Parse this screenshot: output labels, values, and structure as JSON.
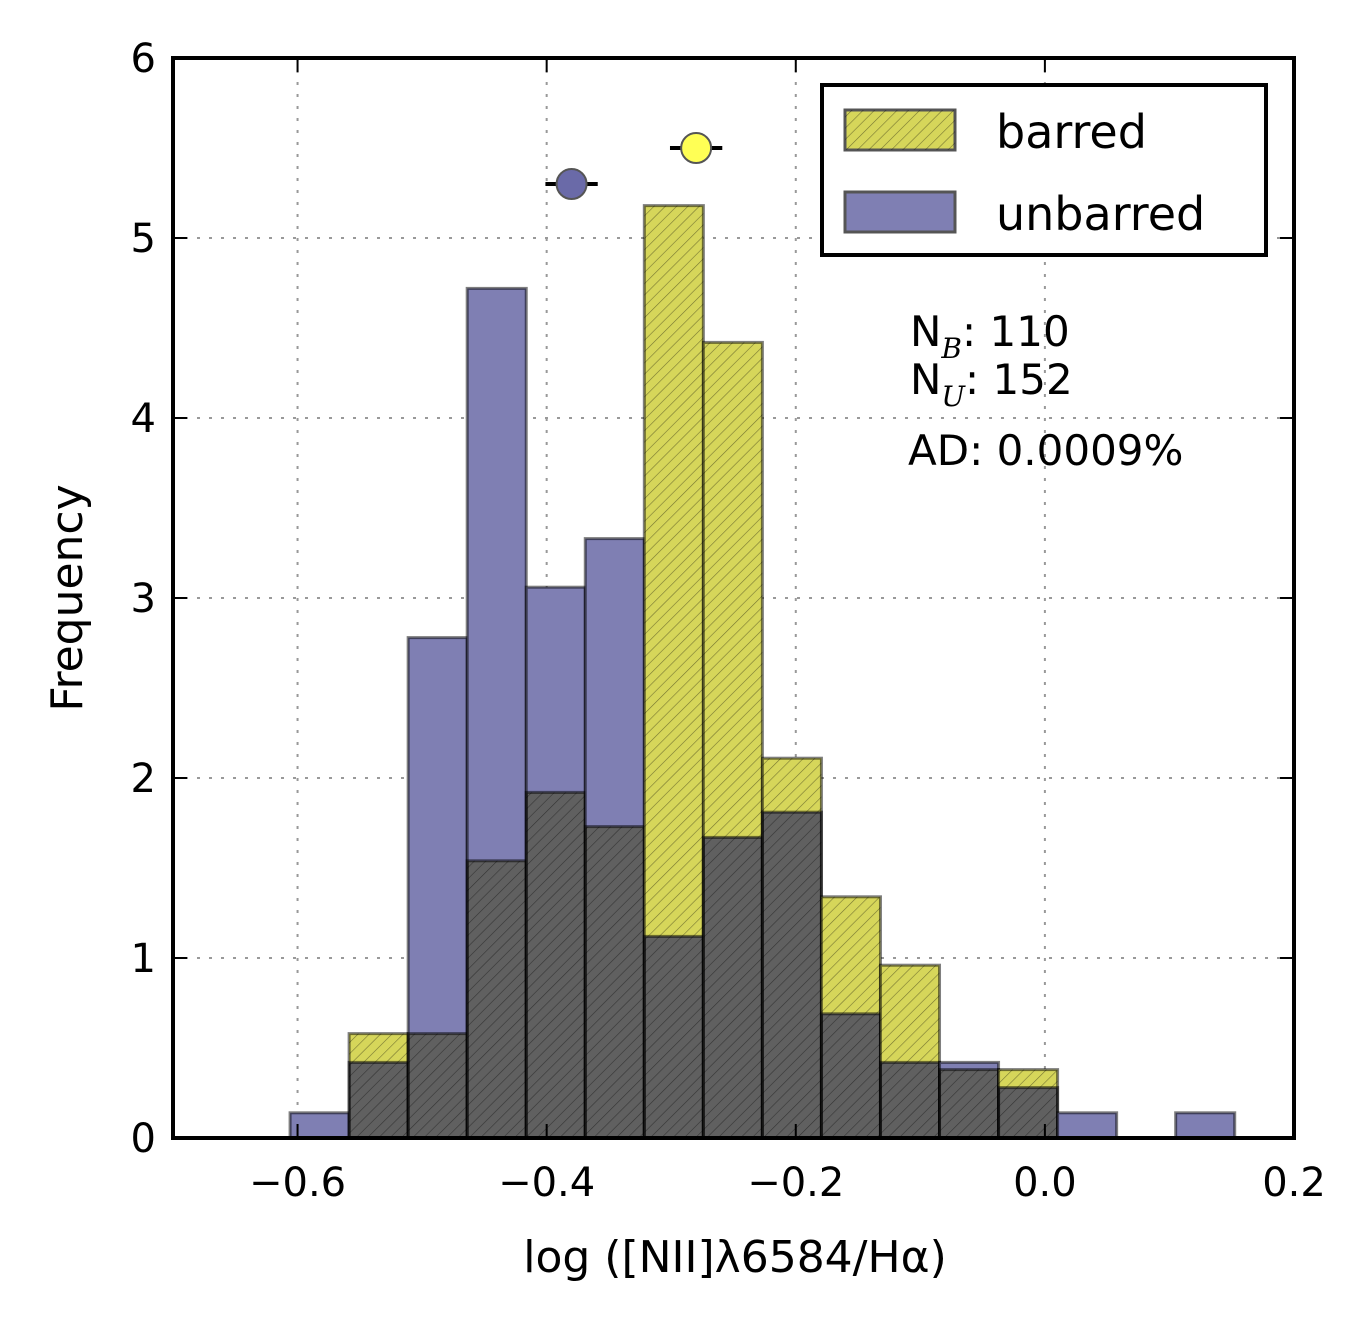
{
  "chart_data": {
    "type": "bar",
    "subtype": "overlapping-histogram",
    "xlabel": "log ([NII]λ6584/Hα)",
    "ylabel": "Frequency",
    "xlim": [
      -0.7,
      0.2
    ],
    "ylim": [
      0,
      6
    ],
    "xticks": [
      "−0.6",
      "−0.4",
      "−0.2",
      "0.0",
      "0.2"
    ],
    "xtick_values": [
      -0.6,
      -0.4,
      -0.2,
      0.0,
      0.2
    ],
    "yticks": [
      "0",
      "1",
      "2",
      "3",
      "4",
      "5",
      "6"
    ],
    "grid": true,
    "bin_start": -0.606,
    "bin_width": 0.0474,
    "series": [
      {
        "name": "barred",
        "color": "#d6d65a",
        "values": [
          0,
          0.58,
          0.58,
          1.54,
          1.92,
          1.73,
          5.18,
          4.42,
          2.11,
          1.34,
          0.96,
          0.38,
          0.38,
          0,
          0,
          0
        ],
        "mean": -0.28,
        "mean_err": 0.021,
        "marker_y": 5.5,
        "marker_color": "#ffff55"
      },
      {
        "name": "unbarred",
        "color": "#7f7fb3",
        "values": [
          0.14,
          0.42,
          2.78,
          4.72,
          3.06,
          3.33,
          1.12,
          1.67,
          1.81,
          0.69,
          0.42,
          0.42,
          0.28,
          0.14,
          0,
          0.14
        ],
        "mean": -0.38,
        "mean_err": 0.021,
        "marker_y": 5.3,
        "marker_color": "#6a6aa8"
      }
    ],
    "legend": {
      "placement": "top-right",
      "entries": [
        "barred",
        "unbarred"
      ]
    },
    "annotations": {
      "nb_label": "N",
      "nb_sub": "B",
      "nb_value": ": 110",
      "nu_label": "N",
      "nu_sub": "U",
      "nu_value": ": 152",
      "ad": "AD: 0.0009%"
    }
  }
}
